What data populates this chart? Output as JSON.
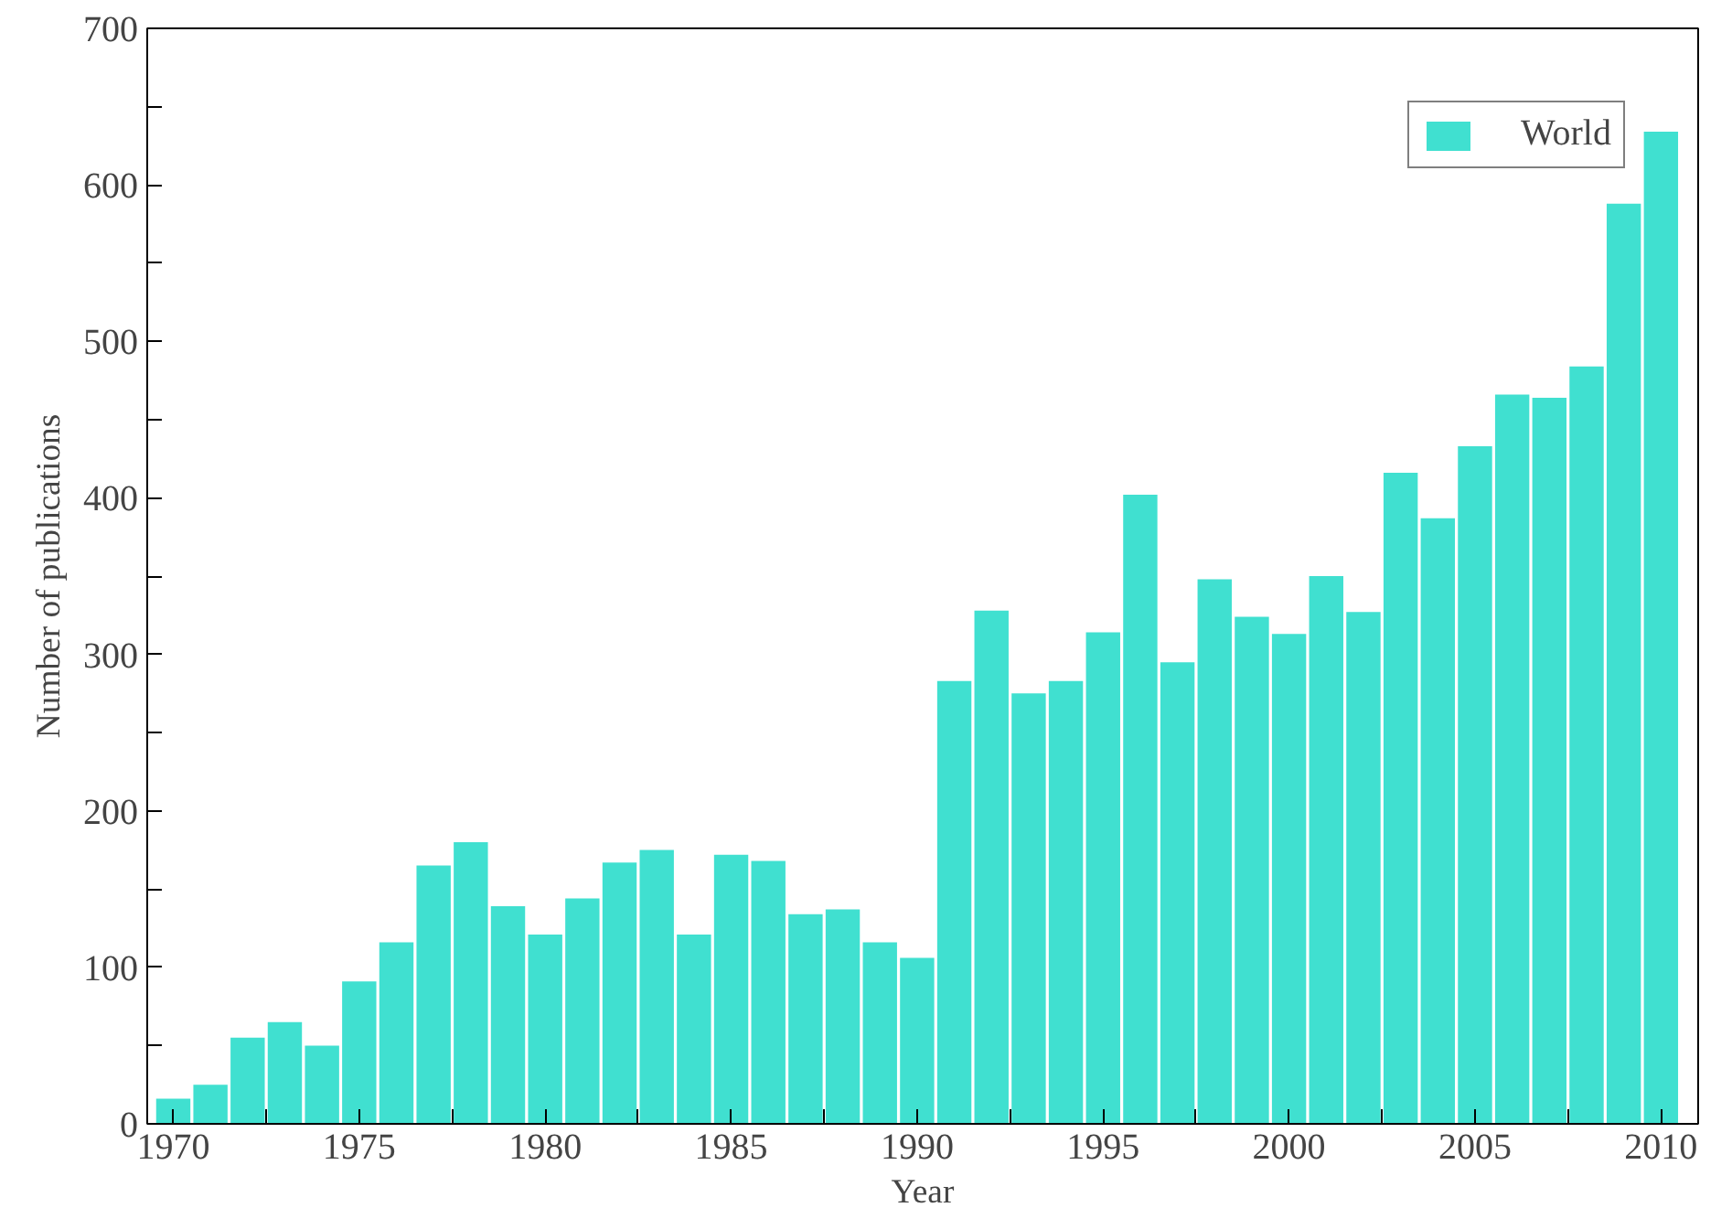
{
  "chart_data": {
    "type": "bar",
    "xlabel": "Year",
    "ylabel": "Number of publications",
    "x": [
      1970,
      1971,
      1972,
      1973,
      1974,
      1975,
      1976,
      1977,
      1978,
      1979,
      1980,
      1981,
      1982,
      1983,
      1984,
      1985,
      1986,
      1987,
      1988,
      1989,
      1990,
      1991,
      1992,
      1993,
      1994,
      1995,
      1996,
      1997,
      1998,
      1999,
      2000,
      2001,
      2002,
      2003,
      2004,
      2005,
      2006,
      2007,
      2008,
      2009,
      2010
    ],
    "series": [
      {
        "name": "World",
        "color": "#40e0d0",
        "values": [
          16,
          25,
          55,
          65,
          50,
          91,
          116,
          165,
          180,
          139,
          121,
          144,
          167,
          175,
          121,
          172,
          168,
          134,
          137,
          116,
          106,
          283,
          328,
          275,
          283,
          314,
          402,
          295,
          348,
          324,
          313,
          350,
          327,
          416,
          387,
          433,
          466,
          464,
          484,
          588,
          634
        ]
      }
    ],
    "xlim": [
      1969.3,
      2011
    ],
    "ylim": [
      0,
      700
    ],
    "xticks": [
      1970,
      {
        "value": 1972.5,
        "label": null
      },
      1975,
      {
        "value": 1977.5,
        "label": null
      },
      1980,
      {
        "value": 1982.5,
        "label": null
      },
      1985,
      {
        "value": 1987.5,
        "label": null
      },
      1990,
      {
        "value": 1992.5,
        "label": null
      },
      1995,
      {
        "value": 1997.5,
        "label": null
      },
      2000,
      {
        "value": 2002.5,
        "label": null
      },
      2005,
      {
        "value": 2007.5,
        "label": null
      },
      2010
    ],
    "yticks": [
      0,
      {
        "value": 50,
        "label": null
      },
      100,
      {
        "value": 150,
        "label": null
      },
      200,
      {
        "value": 250,
        "label": null
      },
      300,
      {
        "value": 350,
        "label": null
      },
      400,
      {
        "value": 450,
        "label": null
      },
      500,
      {
        "value": 550,
        "label": null
      },
      600,
      {
        "value": 650,
        "label": null
      },
      700
    ],
    "grid": false,
    "legend": "top right"
  }
}
